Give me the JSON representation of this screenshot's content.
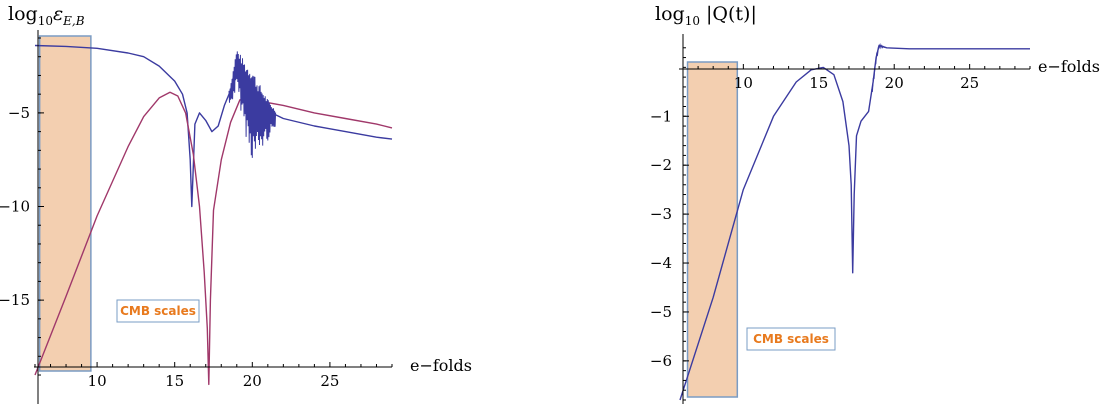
{
  "colors": {
    "blue": "#3b3ba0",
    "red": "#a0386a",
    "cmb_fill": "#f3cfb0",
    "cmb_border": "#7a9cc4",
    "cmb_text": "#e87a1e"
  },
  "chart_data": [
    {
      "type": "line",
      "ylabel_main": "log",
      "ylabel_sub": "10",
      "ylabel_symbol": "ε",
      "ylabel_symbol_sub": "E,B",
      "xlabel": "e−folds",
      "xlim": [
        6,
        29
      ],
      "ylim": [
        -19.8,
        -1
      ],
      "x_ticks": [
        "10",
        "15",
        "20",
        "25"
      ],
      "y_ticks": [
        "-5",
        "-10",
        "-15"
      ],
      "annotation": {
        "text": "CMB scales",
        "x_range": [
          6.3,
          9.6
        ]
      },
      "series": [
        {
          "color": "blue",
          "x": [
            6,
            8,
            10,
            12,
            13,
            14,
            15,
            15.5,
            15.8,
            16.0,
            16.1,
            16.3,
            16.6,
            17.0,
            17.4,
            17.8,
            18.2,
            18.6,
            19.0,
            19.6,
            20.3,
            21.0,
            22,
            24,
            26,
            28,
            29
          ],
          "y": [
            -1.4,
            -1.45,
            -1.55,
            -1.8,
            -2.0,
            -2.5,
            -3.3,
            -4.0,
            -5.0,
            -7.5,
            -10.0,
            -5.6,
            -5.0,
            -5.4,
            -6.0,
            -5.7,
            -4.6,
            -3.8,
            -2.2,
            -3.5,
            -4.4,
            -4.9,
            -5.3,
            -5.7,
            -6.0,
            -6.3,
            -6.4
          ]
        },
        {
          "color": "red",
          "x": [
            6,
            8,
            10,
            12,
            13,
            14,
            14.7,
            15.2,
            15.7,
            16.2,
            16.6,
            16.9,
            17.1,
            17.2,
            17.3,
            17.5,
            18.0,
            18.6,
            19.2,
            20,
            22,
            24,
            26,
            28,
            29
          ],
          "y": [
            -19.0,
            -14.8,
            -10.5,
            -6.8,
            -5.2,
            -4.2,
            -3.9,
            -4.1,
            -5.0,
            -7.2,
            -10.0,
            -13.5,
            -16.5,
            -19.5,
            -15.0,
            -10.2,
            -7.5,
            -5.5,
            -4.3,
            -4.3,
            -4.6,
            -5.0,
            -5.3,
            -5.6,
            -5.8
          ]
        }
      ],
      "oscillation_region": {
        "x": [
          18.5,
          21.5
        ]
      }
    },
    {
      "type": "line",
      "ylabel_main": "log",
      "ylabel_sub": "10",
      "ylabel_rest": " |Q(t)|",
      "xlabel": "e−folds",
      "xlim": [
        6,
        29
      ],
      "ylim": [
        -6.8,
        0.6
      ],
      "x_ticks": [
        "10",
        "15",
        "20",
        "25"
      ],
      "y_ticks": [
        "-1",
        "-2",
        "-3",
        "-4",
        "-5",
        "-6"
      ],
      "annotation": {
        "text": "CMB scales",
        "x_range": [
          6.3,
          9.6
        ]
      },
      "series": [
        {
          "color": "blue",
          "x": [
            5.8,
            8,
            10,
            12,
            13.5,
            14.5,
            15.3,
            16.0,
            16.6,
            17.0,
            17.15,
            17.25,
            17.35,
            17.5,
            17.8,
            18.3,
            18.6,
            18.8,
            19.0,
            19.5,
            21,
            23,
            25,
            27,
            29
          ],
          "y": [
            -6.8,
            -4.7,
            -2.5,
            -1.0,
            -0.3,
            -0.05,
            0.0,
            -0.15,
            -0.7,
            -1.6,
            -2.4,
            -4.2,
            -2.6,
            -1.4,
            -1.1,
            -0.9,
            -0.3,
            0.2,
            0.45,
            0.4,
            0.38,
            0.38,
            0.38,
            0.38,
            0.38
          ]
        }
      ],
      "oscillation_region": {
        "x": [
          18.5,
          19.4
        ]
      }
    }
  ]
}
